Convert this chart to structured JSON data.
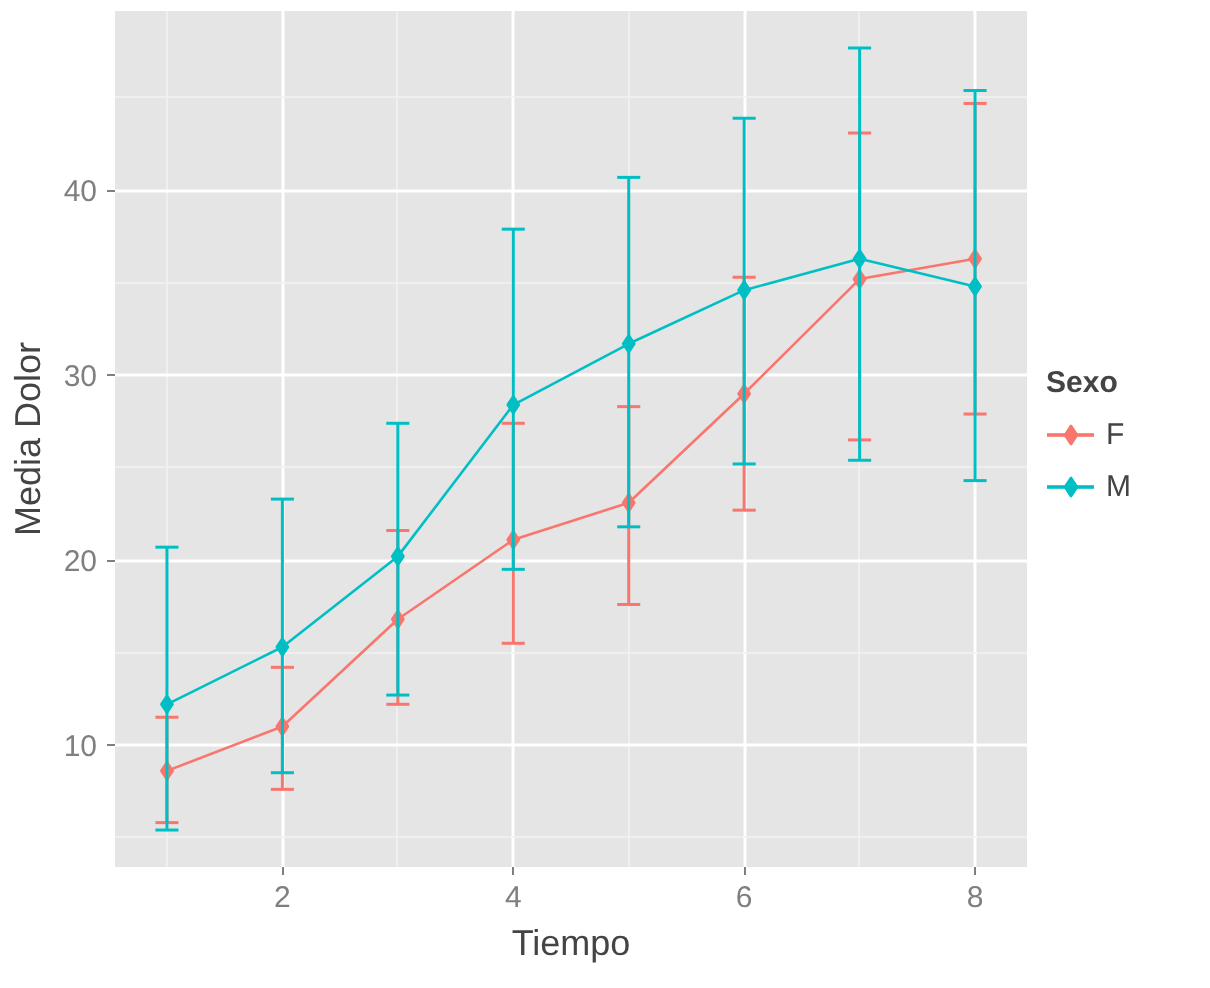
{
  "chart_data": {
    "type": "line",
    "xlabel": "Tiempo",
    "ylabel": "Media Dolor",
    "legend_title": "Sexo",
    "x": [
      1,
      2,
      3,
      4,
      5,
      6,
      7,
      8
    ],
    "series": [
      {
        "name": "F",
        "color": "#f8766d",
        "values": [
          8.6,
          11.0,
          16.8,
          21.1,
          23.1,
          29.0,
          35.2,
          36.3
        ],
        "errors": [
          [
            5.8,
            11.5
          ],
          [
            7.6,
            14.2
          ],
          [
            12.2,
            21.6
          ],
          [
            15.5,
            27.4
          ],
          [
            17.6,
            28.3
          ],
          [
            22.7,
            35.3
          ],
          [
            26.5,
            43.1
          ],
          [
            27.9,
            44.7
          ]
        ]
      },
      {
        "name": "M",
        "color": "#00bfc4",
        "values": [
          12.2,
          15.3,
          20.2,
          28.4,
          31.7,
          34.6,
          36.3,
          34.8
        ],
        "errors": [
          [
            5.4,
            20.7
          ],
          [
            8.5,
            23.3
          ],
          [
            12.7,
            27.4
          ],
          [
            19.5,
            37.9
          ],
          [
            21.8,
            40.7
          ],
          [
            25.2,
            43.9
          ],
          [
            25.4,
            47.7
          ],
          [
            24.3,
            45.4
          ]
        ]
      }
    ],
    "xlim": [
      0.55,
      8.45
    ],
    "ylim": [
      3.4,
      49.7
    ],
    "xticks": [
      2,
      4,
      6,
      8
    ],
    "yticks": [
      10,
      20,
      30,
      40
    ],
    "grid": true,
    "legend": "right",
    "marker": "diamond",
    "line_style": "solid"
  }
}
